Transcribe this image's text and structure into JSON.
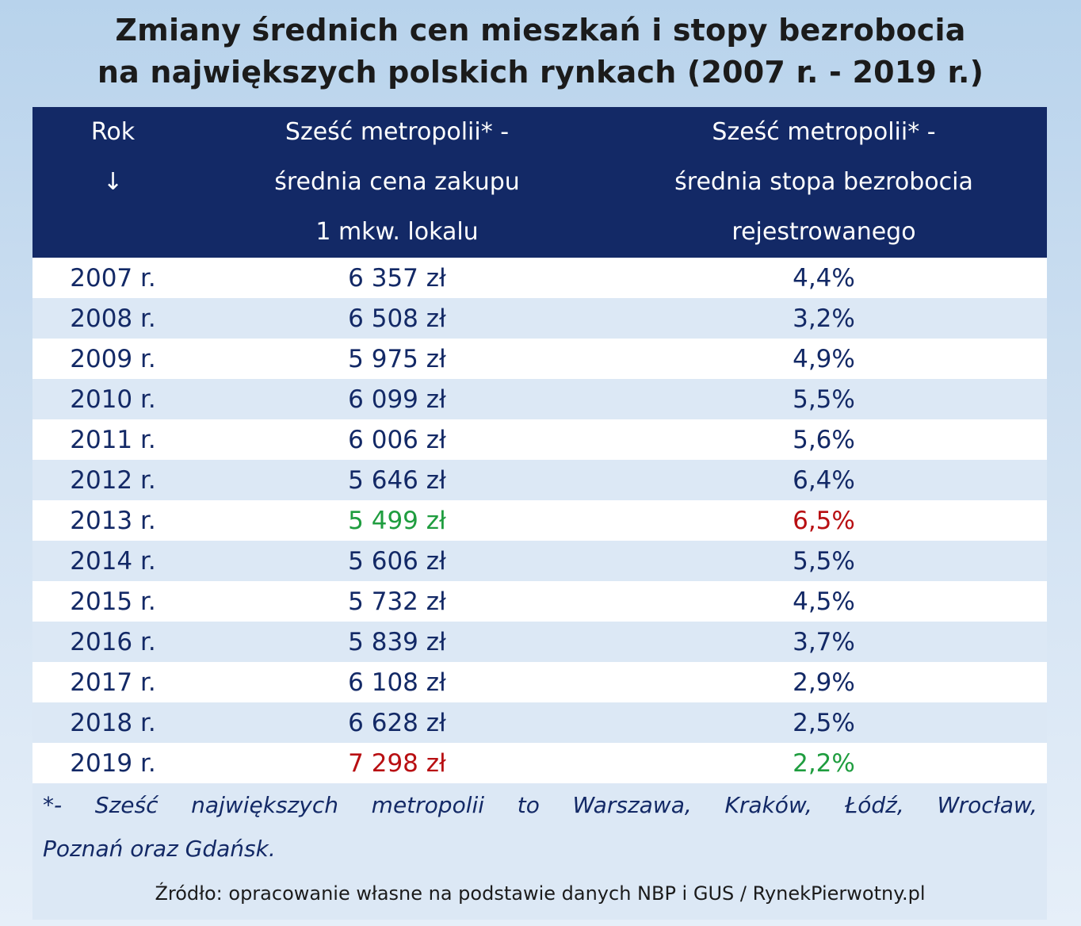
{
  "title": {
    "line1": "Zmiany średnich cen mieszkań i stopy bezrobocia",
    "line2": "na największych polskich rynkach (2007 r. - 2019 r.)"
  },
  "table": {
    "headers": {
      "col1": [
        "Rok",
        "↓"
      ],
      "col2": [
        "Sześć metropolii* -",
        "średnia cena zakupu",
        "1 mkw. lokalu"
      ],
      "col3": [
        "Sześć metropolii* -",
        "średnia stopa bezrobocia",
        "rejestrowanego"
      ]
    },
    "rows": [
      {
        "year": "2007 r.",
        "price": "6 357 zł",
        "rate": "4,4%"
      },
      {
        "year": "2008 r.",
        "price": "6 508 zł",
        "rate": "3,2%"
      },
      {
        "year": "2009 r.",
        "price": "5 975 zł",
        "rate": "4,9%"
      },
      {
        "year": "2010 r.",
        "price": "6 099 zł",
        "rate": "5,5%"
      },
      {
        "year": "2011 r.",
        "price": "6 006 zł",
        "rate": "5,6%"
      },
      {
        "year": "2012 r.",
        "price": "5 646 zł",
        "rate": "6,4%"
      },
      {
        "year": "2013 r.",
        "price": "5 499 zł",
        "rate": "6,5%"
      },
      {
        "year": "2014 r.",
        "price": "5 606 zł",
        "rate": "5,5%"
      },
      {
        "year": "2015 r.",
        "price": "5 732 zł",
        "rate": "4,5%"
      },
      {
        "year": "2016 r.",
        "price": "5 839 zł",
        "rate": "3,7%"
      },
      {
        "year": "2017 r.",
        "price": "6 108 zł",
        "rate": "2,9%"
      },
      {
        "year": "2018 r.",
        "price": "6 628 zł",
        "rate": "2,5%"
      },
      {
        "year": "2019 r.",
        "price": "7 298 zł",
        "rate": "2,2%"
      }
    ]
  },
  "footnote": {
    "line1_words": [
      "*-",
      "Sześć",
      "największych",
      "metropolii",
      "to",
      "Warszawa,",
      "Kraków,",
      "Łódź,",
      "Wrocław,"
    ],
    "line2": "Poznań oraz Gdańsk."
  },
  "source": "Źródło: opracowanie własne na podstawie danych NBP i GUS / RynekPierwotny.pl",
  "colors": {
    "header_bg": "#132966",
    "text_navy": "#132966",
    "highlight_min": "#1f9d3f",
    "highlight_max": "#b80f12"
  }
}
